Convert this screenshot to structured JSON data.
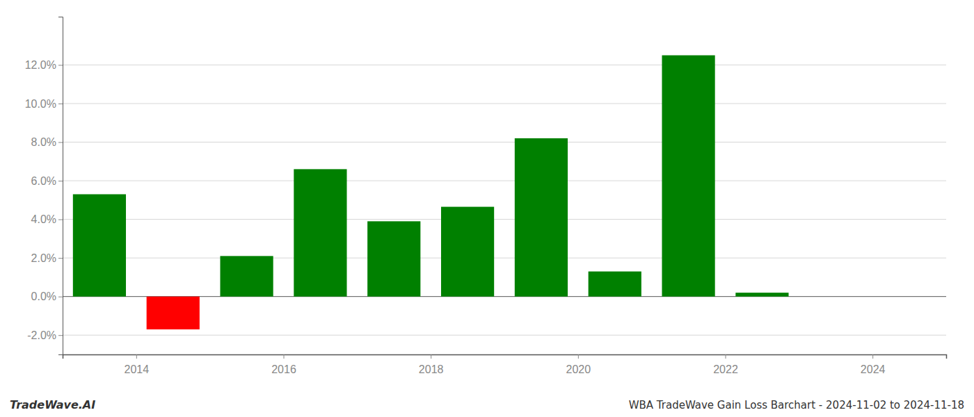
{
  "chart_data": {
    "type": "bar",
    "title": "WBA TradeWave Gain Loss Barchart - 2024-11-02 to 2024-11-18",
    "annotations": [
      "TradeWave.AI"
    ],
    "x": [
      2013.5,
      2014.5,
      2015.5,
      2016.5,
      2017.5,
      2018.5,
      2019.5,
      2020.5,
      2021.5,
      2022.5
    ],
    "values": [
      0.053,
      -0.017,
      0.021,
      0.066,
      0.039,
      0.0465,
      0.082,
      0.013,
      0.125,
      0.002
    ],
    "colors": [
      "#008000",
      "#ff0000",
      "#008000",
      "#008000",
      "#008000",
      "#008000",
      "#008000",
      "#008000",
      "#008000",
      "#008000"
    ],
    "xlim": [
      2013.0,
      2025.0
    ],
    "xticks": [
      2014,
      2016,
      2018,
      2020,
      2022,
      2024
    ],
    "ylim": [
      -0.03,
      0.145
    ],
    "yticks": [
      {
        "value": -0.02,
        "label": "-2.0%"
      },
      {
        "value": 0.0,
        "label": "0.0%"
      },
      {
        "value": 0.02,
        "label": "2.0%"
      },
      {
        "value": 0.04,
        "label": "4.0%"
      },
      {
        "value": 0.06,
        "label": "6.0%"
      },
      {
        "value": 0.08,
        "label": "8.0%"
      },
      {
        "value": 0.1,
        "label": "10.0%"
      },
      {
        "value": 0.12,
        "label": "12.0%"
      }
    ],
    "grid": true
  }
}
